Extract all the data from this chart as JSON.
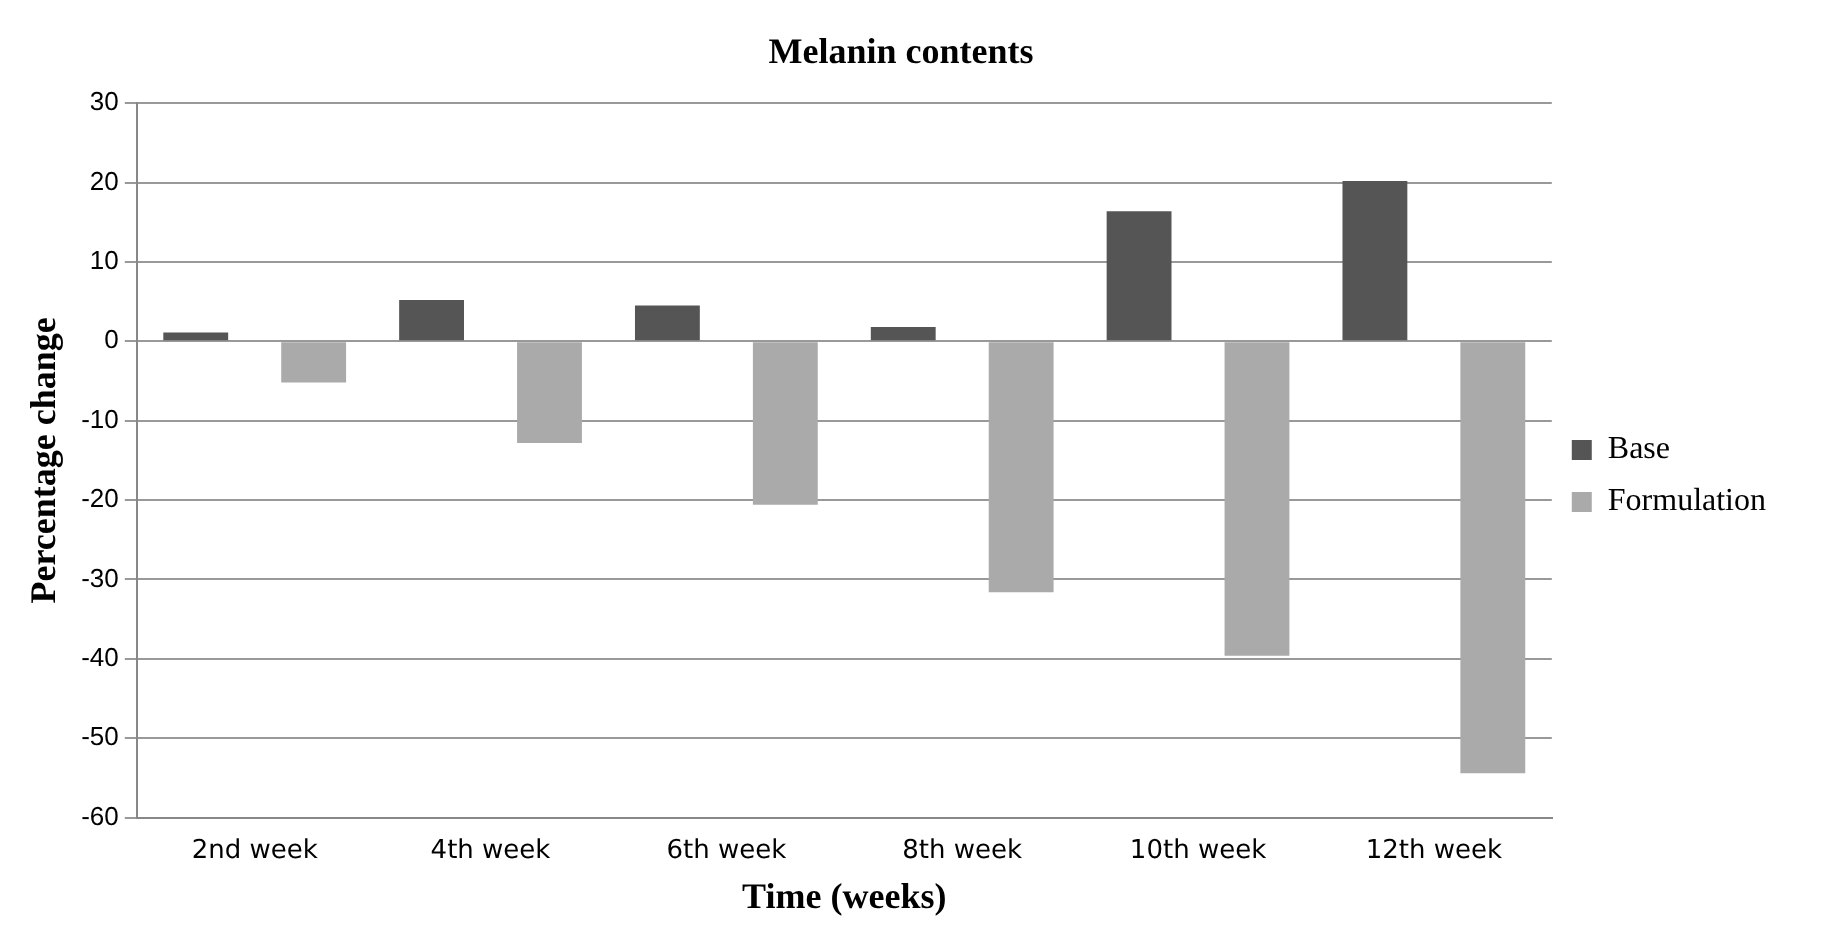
{
  "chart_data": {
    "type": "bar",
    "title": "Melanin contents",
    "xlabel": "Time (weeks)",
    "ylabel": "Percentage change",
    "categories": [
      "2nd week",
      "4th week",
      "6th week",
      "8th week",
      "10th week",
      "12th week"
    ],
    "series": [
      {
        "name": "Base",
        "color": "#555555",
        "values": [
          1.1,
          5.2,
          4.5,
          1.8,
          16.4,
          20.2
        ]
      },
      {
        "name": "Formulation",
        "color": "#aaaaaa",
        "values": [
          -5.2,
          -12.8,
          -20.6,
          -31.6,
          -39.6,
          -54.4
        ]
      }
    ],
    "ylim": [
      -60,
      30
    ],
    "yticks": [
      -60,
      -50,
      -40,
      -30,
      -20,
      -10,
      0,
      10,
      20,
      30
    ],
    "grid": "y",
    "legend": "right"
  }
}
